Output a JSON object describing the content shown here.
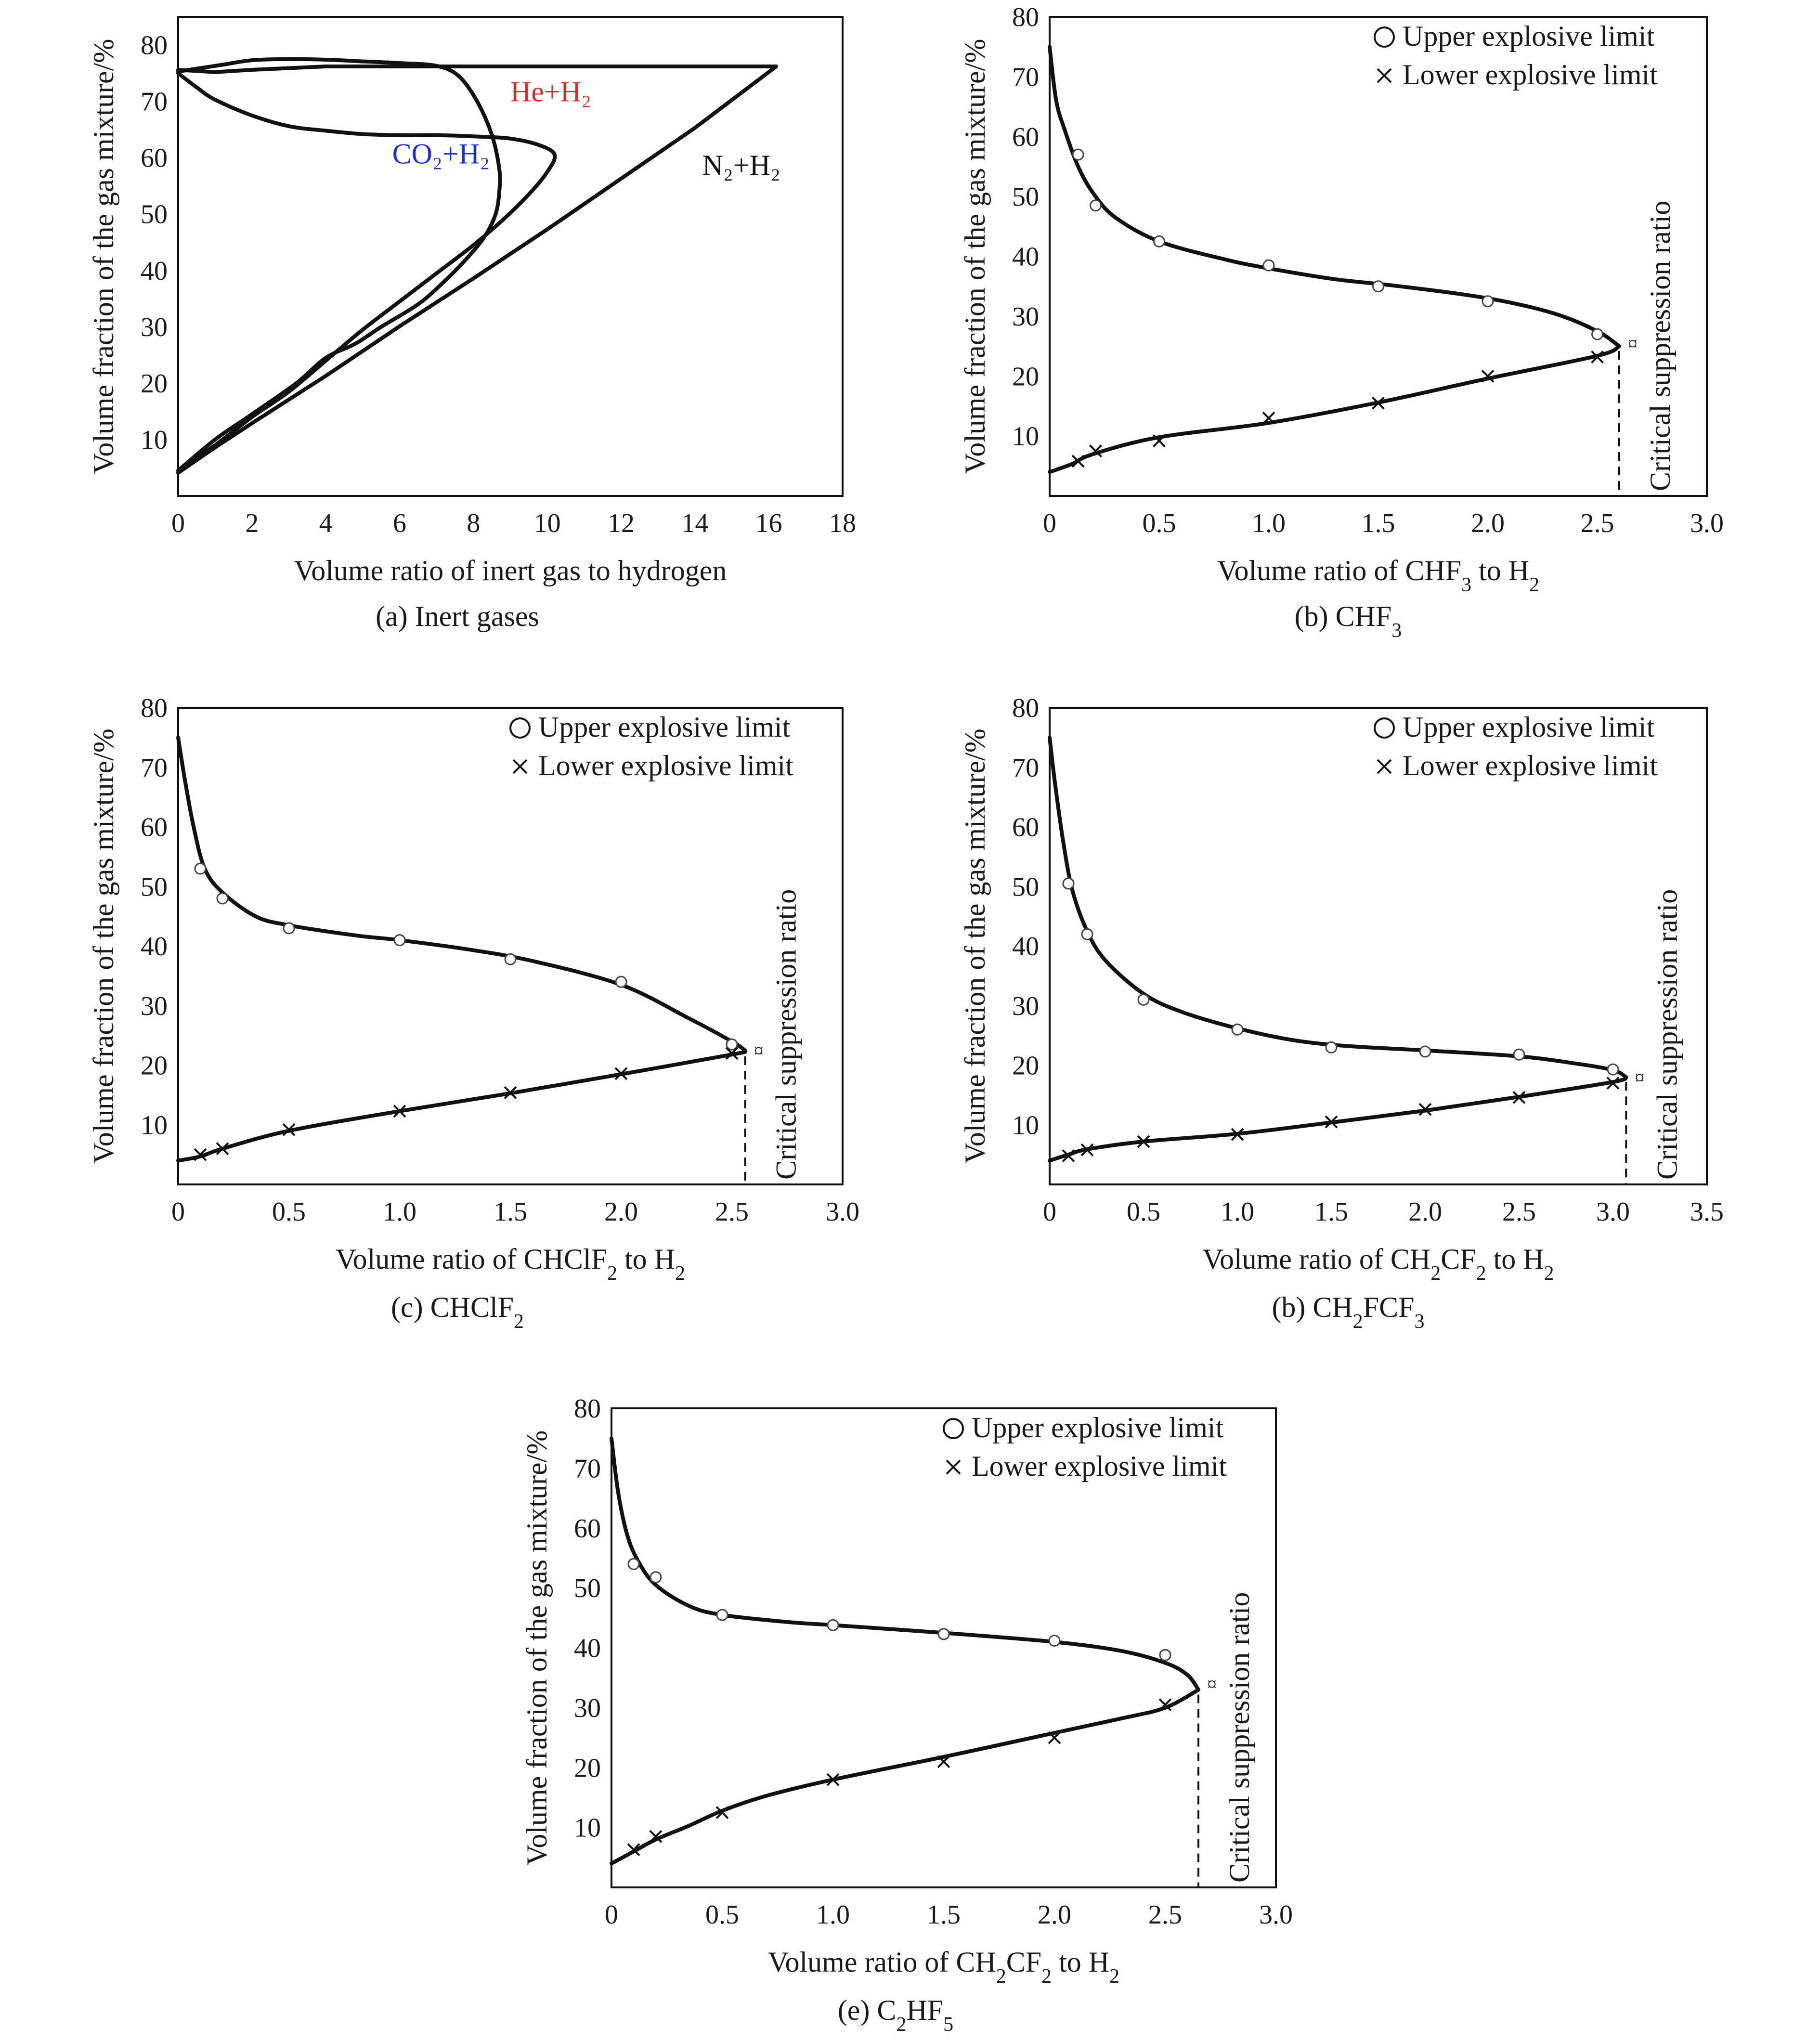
{
  "chart_data": [
    {
      "id": "a",
      "type": "line",
      "caption": "(a) Inert gases",
      "xlabel": "Volume ratio of inert gas to hydrogen",
      "ylabel": "Volume fraction of the gas mixture/%",
      "xlim": [
        0,
        18
      ],
      "ylim": [
        0,
        85
      ],
      "xticks": [
        0,
        2,
        4,
        6,
        8,
        10,
        12,
        14,
        16,
        18
      ],
      "yticks": [
        10,
        20,
        30,
        40,
        50,
        60,
        70,
        80
      ],
      "legend": null,
      "series": [
        {
          "name": "N₂+H₂",
          "color": "#111111",
          "label_at": [
            14.2,
            57
          ],
          "x": [
            0,
            1,
            2,
            4,
            6,
            8,
            10,
            12,
            14,
            16.2,
            14,
            12,
            10,
            8,
            6,
            4,
            2,
            1,
            0
          ],
          "y": [
            75.6,
            75.2,
            75.6,
            76.2,
            76.2,
            76.2,
            76.2,
            76.2,
            76.2,
            76.2,
            65.3,
            56.3,
            47.3,
            38.6,
            30.1,
            21.3,
            12.9,
            8.6,
            4.1
          ]
        },
        {
          "name": "He+H₂",
          "color": "#e02a2a",
          "label_at": [
            9.0,
            70
          ],
          "x": [
            0,
            0.5,
            1.2,
            2,
            3,
            4,
            5,
            6,
            7,
            7.6,
            8.1,
            8.5,
            8.7,
            8.7,
            8.6,
            8.3,
            7.8,
            7.2,
            6.5,
            5.5,
            4.8,
            4,
            3.2,
            2,
            1,
            0
          ],
          "y": [
            75.3,
            75.8,
            76.5,
            77.3,
            77.5,
            77.4,
            77.1,
            76.8,
            76.3,
            74.5,
            70,
            64,
            58,
            54,
            50,
            46,
            42,
            38,
            34,
            30,
            27,
            24.5,
            20,
            14.5,
            10,
            4.5
          ]
        },
        {
          "name": "CO₂+H₂",
          "color": "#2030d0",
          "label_at": [
            5.8,
            59
          ],
          "x": [
            0,
            0.5,
            1,
            2,
            3,
            4,
            5,
            6,
            7,
            8,
            9,
            9.8,
            10.2,
            10,
            9.5,
            8.8,
            8,
            7,
            6,
            5,
            4,
            3,
            2,
            1,
            0
          ],
          "y": [
            75,
            72.5,
            70.3,
            67.5,
            65.6,
            64.8,
            64.2,
            64,
            64,
            63.8,
            63.4,
            62.2,
            60.5,
            57.5,
            53.5,
            49,
            44.5,
            39.5,
            34.5,
            29.5,
            24,
            18.5,
            14,
            9,
            4.5
          ]
        }
      ]
    },
    {
      "id": "b",
      "type": "scatter",
      "caption": "(b) CHF3",
      "xlabel": "Volume ratio of CHF3 to H2",
      "ylabel": "Volume fraction of the gas mixture/%",
      "xlim": [
        0,
        3.0
      ],
      "ylim": [
        0,
        80
      ],
      "xticks": [
        0,
        0.5,
        1.0,
        1.5,
        2.0,
        2.5,
        3.0
      ],
      "xtick_labels": [
        "0",
        "0.5",
        "1.0",
        "1.5",
        "2.0",
        "2.5",
        "3.0"
      ],
      "yticks": [
        10,
        20,
        30,
        40,
        50,
        60,
        70,
        80
      ],
      "legend": {
        "position": "top-right",
        "upper": "Upper explosive limit",
        "lower": "Lower explosive limit"
      },
      "critical_ratio": 2.6,
      "critical_label": "Critical suppression ratio",
      "upper_points": {
        "x": [
          0.13,
          0.21,
          0.5,
          1.0,
          1.5,
          2.0,
          2.5
        ],
        "y": [
          57,
          48.5,
          42.5,
          38.5,
          35,
          32.5,
          27
        ]
      },
      "lower_points": {
        "x": [
          0.13,
          0.21,
          0.5,
          1.0,
          1.5,
          2.0,
          2.5
        ],
        "y": [
          5.8,
          7.5,
          9.2,
          13,
          15.5,
          20,
          23.2
        ]
      },
      "upper_curve": {
        "x": [
          0,
          0.03,
          0.07,
          0.13,
          0.2,
          0.3,
          0.5,
          0.8,
          1.0,
          1.3,
          1.6,
          2.0,
          2.3,
          2.5,
          2.6
        ],
        "y": [
          75,
          66,
          61,
          55,
          50.5,
          46.5,
          42.5,
          39.5,
          38,
          36.2,
          35,
          33,
          30.5,
          27.5,
          25
        ]
      },
      "lower_curve": {
        "x": [
          0,
          0.1,
          0.2,
          0.5,
          1.0,
          1.5,
          2.0,
          2.5,
          2.6
        ],
        "y": [
          4,
          5.3,
          7,
          9.8,
          12.2,
          15.6,
          19.6,
          23.4,
          25
        ]
      },
      "star_y": 25.5
    },
    {
      "id": "c",
      "type": "scatter",
      "caption": "(c) CHClF2",
      "xlabel": "Volume ratio of CHClF2 to H2",
      "ylabel": "Volume fraction of the gas mixture/%",
      "xlim": [
        0,
        3.0
      ],
      "ylim": [
        0,
        80
      ],
      "xticks": [
        0,
        0.5,
        1.0,
        1.5,
        2.0,
        2.5,
        3.0
      ],
      "xtick_labels": [
        "0",
        "0.5",
        "1.0",
        "1.5",
        "2.0",
        "2.5",
        "3.0"
      ],
      "yticks": [
        10,
        20,
        30,
        40,
        50,
        60,
        70,
        80
      ],
      "legend": {
        "position": "top-right",
        "upper": "Upper explosive limit",
        "lower": "Lower explosive limit"
      },
      "critical_ratio": 2.56,
      "critical_label": "Critical suppression ratio",
      "upper_points": {
        "x": [
          0.1,
          0.2,
          0.5,
          1.0,
          1.5,
          2.0,
          2.5
        ],
        "y": [
          53,
          48,
          43,
          41,
          37.8,
          34,
          23.5
        ]
      },
      "lower_points": {
        "x": [
          0.1,
          0.2,
          0.5,
          1.0,
          1.5,
          2.0,
          2.5
        ],
        "y": [
          5,
          6,
          9.2,
          12.3,
          15.4,
          18.6,
          22
        ]
      },
      "upper_curve": {
        "x": [
          0,
          0.03,
          0.07,
          0.12,
          0.2,
          0.35,
          0.5,
          0.8,
          1.0,
          1.3,
          1.6,
          2.0,
          2.3,
          2.5,
          2.56
        ],
        "y": [
          75,
          68,
          60,
          53,
          49,
          45,
          43.5,
          41.8,
          41,
          39.5,
          37.5,
          33.5,
          28,
          24,
          22.5
        ]
      },
      "lower_curve": {
        "x": [
          0,
          0.1,
          0.2,
          0.5,
          1.0,
          1.5,
          2.0,
          2.5,
          2.56
        ],
        "y": [
          4,
          4.7,
          6,
          9,
          12.3,
          15.3,
          18.5,
          21.8,
          22.3
        ]
      },
      "star_y": 22.5
    },
    {
      "id": "d",
      "type": "scatter",
      "caption": "(b) CH2FCF3",
      "xlabel": "Volume ratio of CH2CF2 to H2",
      "ylabel": "Volume fraction of the gas mixture/%",
      "xlim": [
        0,
        3.5
      ],
      "ylim": [
        0,
        80
      ],
      "xticks": [
        0,
        0.5,
        1.0,
        1.5,
        2.0,
        2.5,
        3.0,
        3.5
      ],
      "xtick_labels": [
        "0",
        "0.5",
        "1.0",
        "1.5",
        "2.0",
        "2.5",
        "3.0",
        "3.5"
      ],
      "yticks": [
        10,
        20,
        30,
        40,
        50,
        60,
        70,
        80
      ],
      "legend": {
        "position": "top-right",
        "upper": "Upper explosive limit",
        "lower": "Lower explosive limit"
      },
      "critical_ratio": 3.07,
      "critical_label": "Critical suppression ratio",
      "upper_points": {
        "x": [
          0.1,
          0.2,
          0.5,
          1.0,
          1.5,
          2.0,
          2.5,
          3.0
        ],
        "y": [
          50.5,
          42,
          31,
          26,
          23,
          22.3,
          21.8,
          19.3
        ]
      },
      "lower_points": {
        "x": [
          0.1,
          0.2,
          0.5,
          1.0,
          1.5,
          2.0,
          2.5,
          3.0
        ],
        "y": [
          4.8,
          5.8,
          7.2,
          8.4,
          10.5,
          12.6,
          14.6,
          17
        ]
      },
      "upper_curve": {
        "x": [
          0,
          0.03,
          0.07,
          0.12,
          0.2,
          0.3,
          0.5,
          0.7,
          1.0,
          1.3,
          1.6,
          2.0,
          2.5,
          2.8,
          3.0,
          3.07
        ],
        "y": [
          75,
          67,
          58,
          49.5,
          42.5,
          37.5,
          32,
          29,
          26.2,
          24.2,
          23.2,
          22.5,
          21.5,
          20.3,
          19.2,
          18
        ]
      },
      "lower_curve": {
        "x": [
          0,
          0.1,
          0.2,
          0.5,
          1.0,
          1.5,
          2.0,
          2.5,
          3.0,
          3.07
        ],
        "y": [
          4,
          5,
          5.9,
          7.2,
          8.5,
          10.4,
          12.4,
          14.7,
          17.2,
          18
        ]
      },
      "star_y": 18
    },
    {
      "id": "e",
      "type": "scatter",
      "caption": "(e) C2HF5",
      "xlabel": "Volume ratio of CH2CF2 to H2",
      "ylabel": "Volume fraction of the gas mixture/%",
      "xlim": [
        0,
        3.0
      ],
      "ylim": [
        0,
        80
      ],
      "xticks": [
        0,
        0.5,
        1.0,
        1.5,
        2.0,
        2.5,
        3.0
      ],
      "xtick_labels": [
        "0",
        "0.5",
        "1.0",
        "1.5",
        "2.0",
        "2.5",
        "3.0"
      ],
      "yticks": [
        10,
        20,
        30,
        40,
        50,
        60,
        70,
        80
      ],
      "legend": {
        "position": "top-right",
        "upper": "Upper explosive limit",
        "lower": "Lower explosive limit"
      },
      "critical_ratio": 2.65,
      "critical_label": "Critical suppression ratio",
      "upper_points": {
        "x": [
          0.1,
          0.2,
          0.5,
          1.0,
          1.5,
          2.0,
          2.5
        ],
        "y": [
          54,
          51.8,
          45.5,
          43.8,
          42.3,
          41.2,
          38.8
        ]
      },
      "lower_points": {
        "x": [
          0.1,
          0.2,
          0.5,
          1.0,
          1.5,
          2.0,
          2.5
        ],
        "y": [
          6.3,
          8.5,
          12.5,
          18,
          21,
          25,
          30.5
        ]
      },
      "upper_curve": {
        "x": [
          0,
          0.03,
          0.07,
          0.12,
          0.2,
          0.35,
          0.5,
          0.8,
          1.0,
          1.5,
          2.0,
          2.3,
          2.5,
          2.6,
          2.65
        ],
        "y": [
          75,
          66,
          59,
          54.5,
          50.5,
          47,
          45.5,
          44.3,
          43.8,
          42.5,
          41,
          39.5,
          37.5,
          35.5,
          33
        ]
      },
      "lower_curve": {
        "x": [
          0,
          0.1,
          0.2,
          0.35,
          0.5,
          0.7,
          1.0,
          1.5,
          2.0,
          2.3,
          2.5,
          2.65
        ],
        "y": [
          4,
          6,
          8,
          10.3,
          12.8,
          15.3,
          18,
          21.8,
          25.8,
          28.2,
          30,
          33
        ]
      },
      "star_y": 34
    }
  ]
}
